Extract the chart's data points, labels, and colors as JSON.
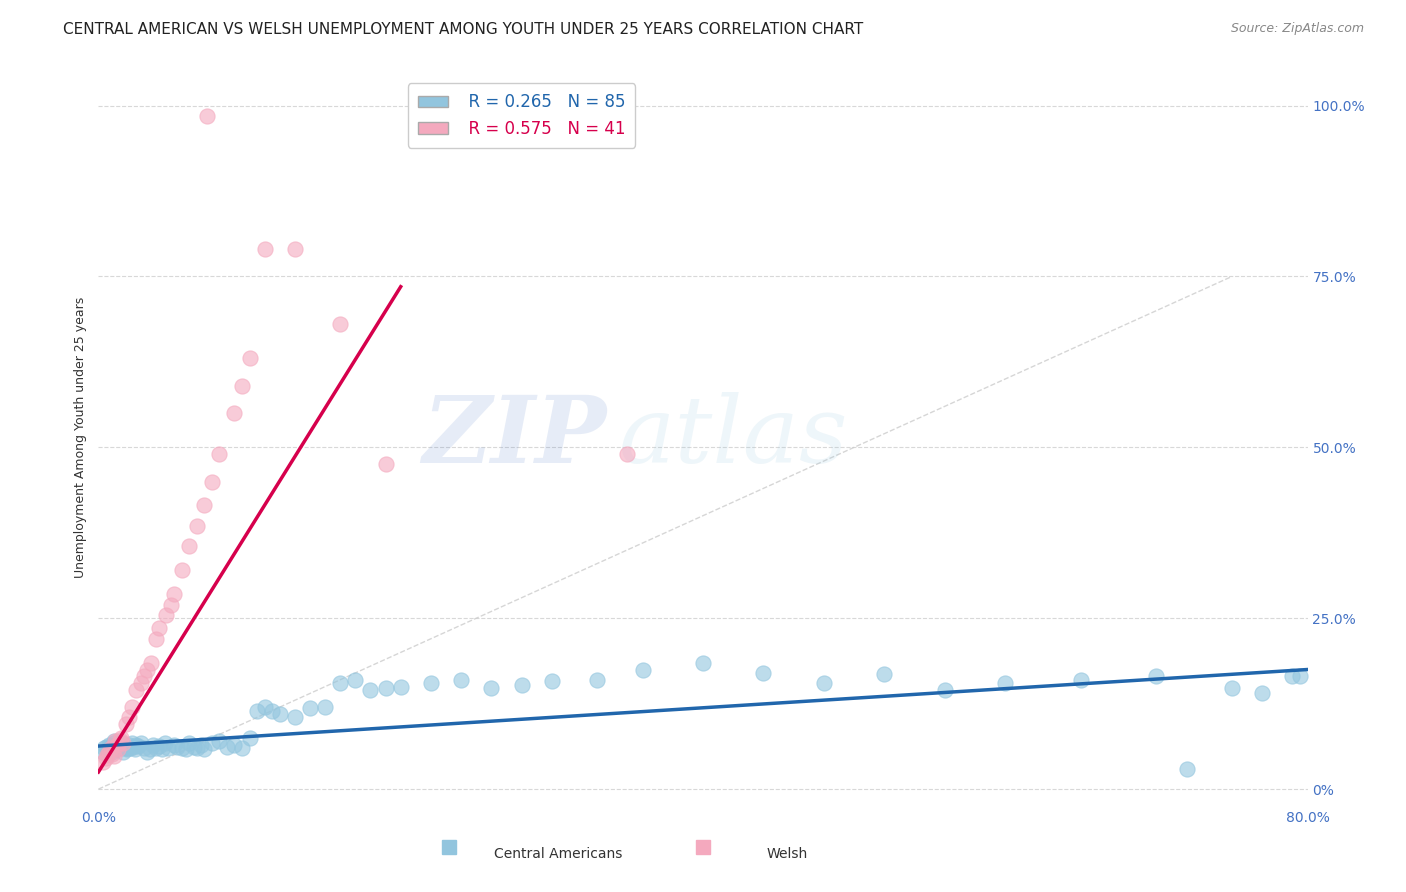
{
  "title": "CENTRAL AMERICAN VS WELSH UNEMPLOYMENT AMONG YOUTH UNDER 25 YEARS CORRELATION CHART",
  "source": "Source: ZipAtlas.com",
  "ylabel": "Unemployment Among Youth under 25 years",
  "xlim": [
    0.0,
    0.8
  ],
  "ylim": [
    -0.02,
    1.05
  ],
  "ytick_right_labels": [
    "0%",
    "25.0%",
    "50.0%",
    "75.0%",
    "100.0%"
  ],
  "ytick_right_vals": [
    0.0,
    0.25,
    0.5,
    0.75,
    1.0
  ],
  "legend_blue_r": "R = 0.265",
  "legend_blue_n": "N = 85",
  "legend_pink_r": "R = 0.575",
  "legend_pink_n": "N = 41",
  "blue_color": "#92c5de",
  "pink_color": "#f4a9be",
  "blue_line_color": "#2166ac",
  "pink_line_color": "#d6004c",
  "diagonal_color": "#cccccc",
  "watermark_zip": "ZIP",
  "watermark_atlas": "atlas",
  "background_color": "#ffffff",
  "grid_color": "#d8d8d8",
  "title_fontsize": 11,
  "label_fontsize": 9,
  "blue_scatter_x": [
    0.003,
    0.004,
    0.005,
    0.006,
    0.007,
    0.008,
    0.008,
    0.009,
    0.01,
    0.01,
    0.01,
    0.011,
    0.012,
    0.013,
    0.014,
    0.015,
    0.015,
    0.016,
    0.017,
    0.018,
    0.019,
    0.02,
    0.021,
    0.022,
    0.023,
    0.024,
    0.025,
    0.026,
    0.028,
    0.03,
    0.032,
    0.034,
    0.036,
    0.038,
    0.04,
    0.042,
    0.044,
    0.046,
    0.05,
    0.052,
    0.055,
    0.058,
    0.06,
    0.063,
    0.065,
    0.068,
    0.07,
    0.075,
    0.08,
    0.085,
    0.09,
    0.095,
    0.1,
    0.105,
    0.11,
    0.115,
    0.12,
    0.13,
    0.14,
    0.15,
    0.16,
    0.17,
    0.18,
    0.19,
    0.2,
    0.22,
    0.24,
    0.26,
    0.28,
    0.3,
    0.33,
    0.36,
    0.4,
    0.44,
    0.48,
    0.52,
    0.56,
    0.6,
    0.65,
    0.7,
    0.72,
    0.75,
    0.77,
    0.79,
    0.795
  ],
  "blue_scatter_y": [
    0.055,
    0.06,
    0.062,
    0.058,
    0.065,
    0.058,
    0.06,
    0.055,
    0.063,
    0.068,
    0.07,
    0.06,
    0.058,
    0.062,
    0.065,
    0.068,
    0.06,
    0.055,
    0.063,
    0.06,
    0.058,
    0.065,
    0.06,
    0.068,
    0.062,
    0.058,
    0.065,
    0.063,
    0.068,
    0.06,
    0.055,
    0.058,
    0.065,
    0.06,
    0.063,
    0.058,
    0.068,
    0.06,
    0.065,
    0.062,
    0.06,
    0.058,
    0.068,
    0.062,
    0.06,
    0.065,
    0.058,
    0.068,
    0.07,
    0.062,
    0.065,
    0.06,
    0.075,
    0.115,
    0.12,
    0.115,
    0.11,
    0.105,
    0.118,
    0.12,
    0.155,
    0.16,
    0.145,
    0.148,
    0.15,
    0.155,
    0.16,
    0.148,
    0.152,
    0.158,
    0.16,
    0.175,
    0.185,
    0.17,
    0.155,
    0.168,
    0.145,
    0.155,
    0.16,
    0.165,
    0.03,
    0.148,
    0.14,
    0.165,
    0.165
  ],
  "pink_scatter_x": [
    0.003,
    0.005,
    0.006,
    0.007,
    0.008,
    0.009,
    0.01,
    0.011,
    0.012,
    0.013,
    0.014,
    0.015,
    0.016,
    0.018,
    0.02,
    0.022,
    0.025,
    0.028,
    0.03,
    0.032,
    0.035,
    0.038,
    0.04,
    0.045,
    0.048,
    0.05,
    0.055,
    0.06,
    0.065,
    0.07,
    0.072,
    0.075,
    0.08,
    0.09,
    0.095,
    0.1,
    0.11,
    0.13,
    0.16,
    0.19,
    0.35
  ],
  "pink_scatter_y": [
    0.04,
    0.045,
    0.05,
    0.055,
    0.06,
    0.052,
    0.048,
    0.07,
    0.065,
    0.058,
    0.072,
    0.075,
    0.068,
    0.095,
    0.105,
    0.12,
    0.145,
    0.155,
    0.165,
    0.175,
    0.185,
    0.22,
    0.235,
    0.255,
    0.27,
    0.285,
    0.32,
    0.355,
    0.385,
    0.415,
    0.985,
    0.45,
    0.49,
    0.55,
    0.59,
    0.63,
    0.79,
    0.79,
    0.68,
    0.475,
    0.49
  ],
  "blue_trend_x": [
    0.0,
    0.8
  ],
  "blue_trend_y": [
    0.063,
    0.175
  ],
  "pink_trend_x": [
    0.0,
    0.2
  ],
  "pink_trend_y": [
    0.025,
    0.735
  ]
}
